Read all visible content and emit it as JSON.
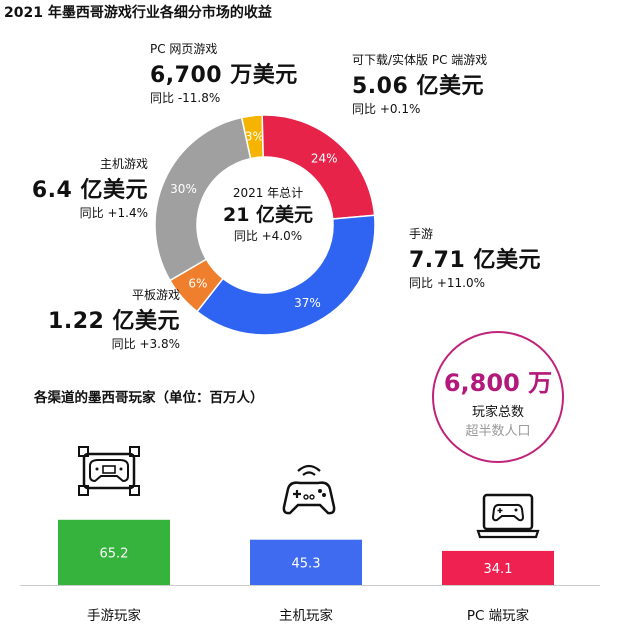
{
  "title": "2021 年墨西哥游戏行业各细分市场的收益",
  "chart_data": [
    {
      "type": "pie",
      "title": "2021 年墨西哥游戏行业各细分市场的收益",
      "center": {
        "label": "2021 年总计",
        "value": "21 亿美元",
        "yoy": "同比 +4.0%"
      },
      "slices": [
        {
          "name": "PC 网页游戏",
          "percent": 3,
          "label": "3%",
          "value": "6,700 万美元",
          "yoy": "同比 -11.8%",
          "color": "#F4B400"
        },
        {
          "name": "可下载/实体版 PC 端游戏",
          "percent": 24,
          "label": "24%",
          "value": "5.06 亿美元",
          "yoy": "同比 +0.1%",
          "color": "#E8234A"
        },
        {
          "name": "手游",
          "percent": 37,
          "label": "37%",
          "value": "7.71 亿美元",
          "yoy": "同比 +11.0%",
          "color": "#2F64F2"
        },
        {
          "name": "平板游戏",
          "percent": 6,
          "label": "6%",
          "value": "1.22 亿美元",
          "yoy": "同比 +3.8%",
          "color": "#EF7F2C"
        },
        {
          "name": "主机游戏",
          "percent": 30,
          "label": "30%",
          "value": "6.4 亿美元",
          "yoy": "同比 +1.4%",
          "color": "#A0A0A0"
        }
      ]
    },
    {
      "type": "bar",
      "title": "各渠道的墨西哥玩家（单位：百万人）",
      "categories": [
        "手游玩家",
        "主机玩家",
        "PC 端玩家"
      ],
      "values": [
        65.2,
        45.3,
        34.1
      ],
      "value_labels": [
        "65.2",
        "45.3",
        "34.1"
      ],
      "colors": [
        "#35B33C",
        "#3E6BF0",
        "#EE2150"
      ],
      "icons": [
        "mobile-gamepad-icon",
        "gamepad-icon",
        "laptop-gamepad-icon"
      ],
      "ylim": [
        0,
        200
      ]
    }
  ],
  "total_players": {
    "value": "6,800 万",
    "label": "玩家总数",
    "note": "超半数人口",
    "color": "#B3197A"
  }
}
